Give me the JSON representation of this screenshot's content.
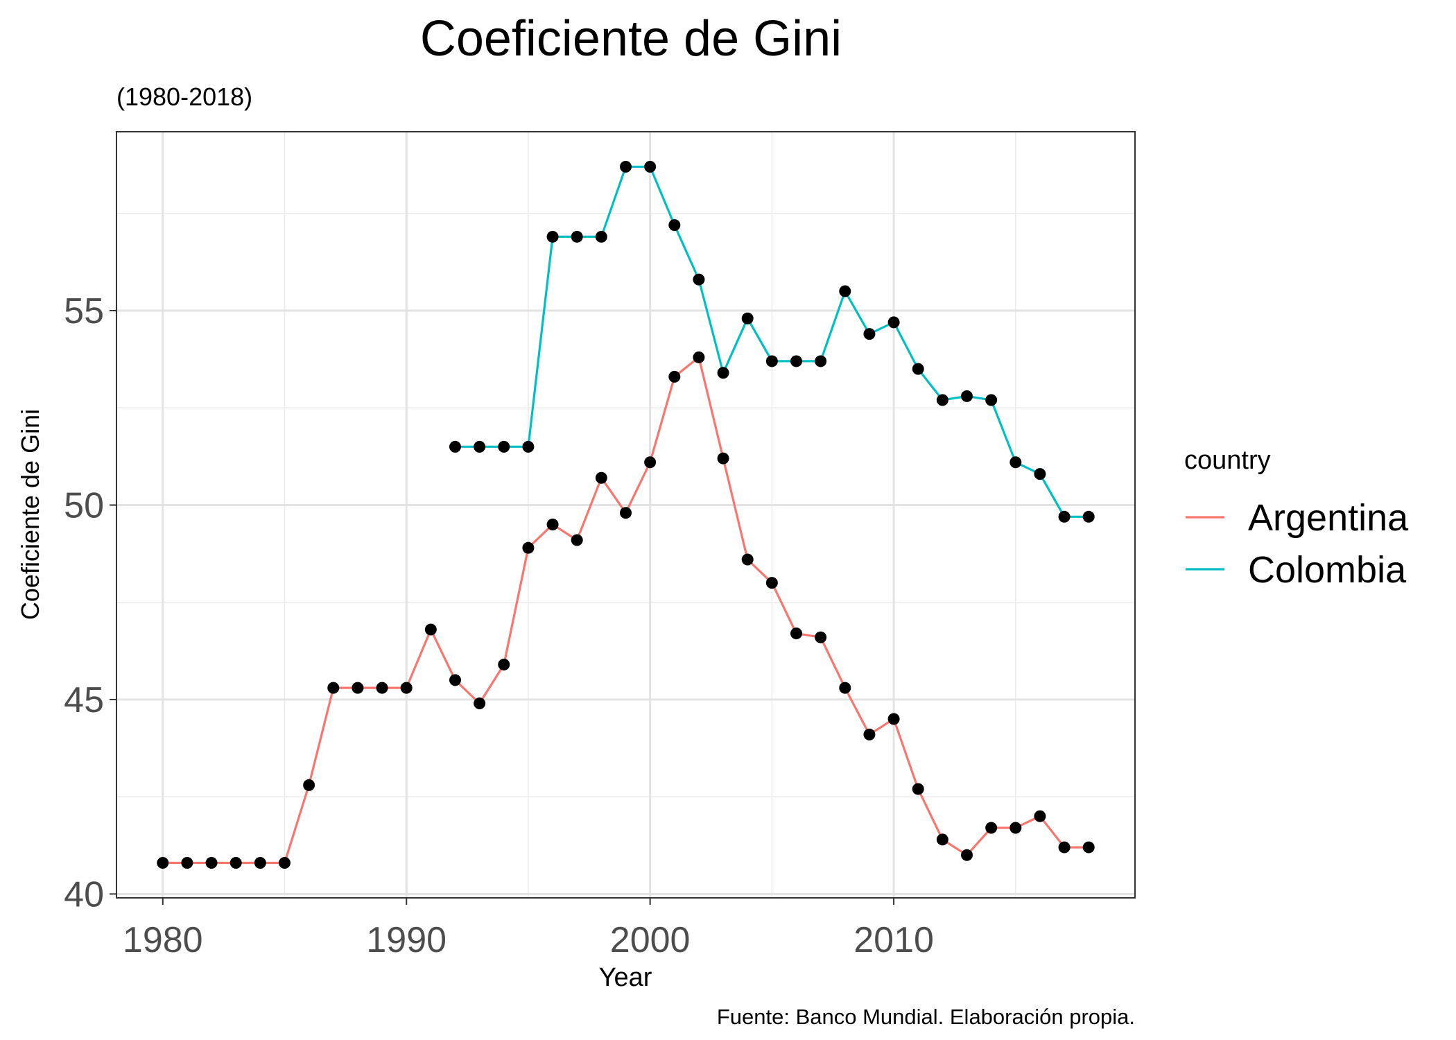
{
  "chart_data": {
    "type": "line",
    "title": "Coeficiente de Gini",
    "subtitle": "(1980-2018)",
    "xlabel": "Year",
    "ylabel": "Coeficiente de Gini",
    "caption": "Fuente: Banco Mundial. Elaboración propia.",
    "xlim": [
      1978.1,
      2019.9
    ],
    "ylim": [
      39.9,
      59.6
    ],
    "x_ticks": [
      1980,
      1990,
      2000,
      2010
    ],
    "y_ticks": [
      40,
      45,
      50,
      55
    ],
    "grid": true,
    "legend": {
      "title": "country",
      "position": "right"
    },
    "point_color": "#000000",
    "series": [
      {
        "name": "Argentina",
        "color": "#F8766D",
        "x": [
          1980,
          1981,
          1982,
          1983,
          1984,
          1985,
          1986,
          1987,
          1988,
          1989,
          1990,
          1991,
          1992,
          1993,
          1994,
          1995,
          1996,
          1997,
          1998,
          1999,
          2000,
          2001,
          2002,
          2003,
          2004,
          2005,
          2006,
          2007,
          2008,
          2009,
          2010,
          2011,
          2012,
          2013,
          2014,
          2015,
          2016,
          2017,
          2018
        ],
        "y": [
          40.8,
          40.8,
          40.8,
          40.8,
          40.8,
          40.8,
          42.8,
          45.3,
          45.3,
          45.3,
          45.3,
          46.8,
          45.5,
          44.9,
          45.9,
          48.9,
          49.5,
          49.1,
          50.7,
          49.8,
          51.1,
          53.3,
          53.8,
          51.2,
          48.6,
          48.0,
          46.7,
          46.6,
          45.3,
          44.1,
          44.5,
          42.7,
          41.4,
          41.0,
          41.7,
          41.7,
          42.0,
          41.2,
          41.2
        ]
      },
      {
        "name": "Colombia",
        "color": "#00BFC4",
        "x": [
          1992,
          1993,
          1994,
          1995,
          1996,
          1997,
          1998,
          1999,
          2000,
          2001,
          2002,
          2003,
          2004,
          2005,
          2006,
          2007,
          2008,
          2009,
          2010,
          2011,
          2012,
          2013,
          2014,
          2015,
          2016,
          2017,
          2018
        ],
        "y": [
          51.5,
          51.5,
          51.5,
          51.5,
          56.9,
          56.9,
          56.9,
          58.7,
          58.7,
          57.2,
          55.8,
          53.4,
          54.8,
          53.7,
          53.7,
          53.7,
          55.5,
          54.4,
          54.7,
          53.5,
          52.7,
          52.8,
          52.7,
          51.1,
          50.8,
          49.7,
          49.7
        ]
      }
    ]
  }
}
